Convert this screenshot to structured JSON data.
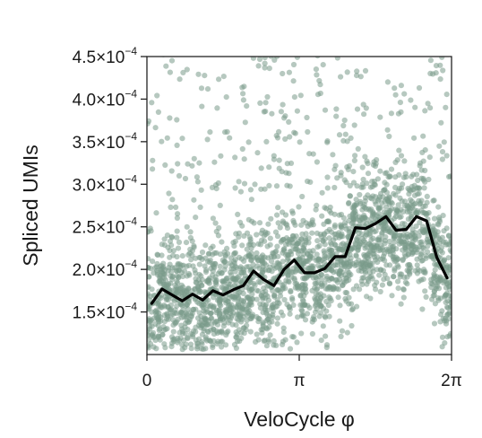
{
  "chart_data": {
    "type": "scatter",
    "xlabel": "VeloCycle φ",
    "ylabel": "Spliced UMIs",
    "xlim": [
      0,
      6.2832
    ],
    "ylim": [
      0.0001,
      0.00045
    ],
    "x_ticks": [
      {
        "value": 0,
        "label": "0"
      },
      {
        "value": 3.1416,
        "label": "π"
      },
      {
        "value": 6.2832,
        "label": "2π"
      }
    ],
    "y_ticks": [
      {
        "value": 0.00015,
        "mantissa": "1.5×10",
        "exponent": "−4"
      },
      {
        "value": 0.0002,
        "mantissa": "2.0×10",
        "exponent": "−4"
      },
      {
        "value": 0.00025,
        "mantissa": "2.5×10",
        "exponent": "−4"
      },
      {
        "value": 0.0003,
        "mantissa": "3.0×10",
        "exponent": "−4"
      },
      {
        "value": 0.00035,
        "mantissa": "3.5×10",
        "exponent": "−4"
      },
      {
        "value": 0.0004,
        "mantissa": "4.0×10",
        "exponent": "−4"
      },
      {
        "value": 0.00045,
        "mantissa": "4.5×10",
        "exponent": "−4"
      }
    ],
    "grid": false,
    "scatter_color": "#7a9a8a",
    "line_color": "#000000",
    "scatter_count": 2600,
    "mean_line": {
      "x": [
        0.1,
        0.31,
        0.52,
        0.73,
        0.94,
        1.15,
        1.36,
        1.57,
        1.78,
        1.99,
        2.2,
        2.41,
        2.62,
        2.83,
        3.04,
        3.25,
        3.46,
        3.67,
        3.88,
        4.09,
        4.3,
        4.51,
        4.72,
        4.93,
        5.14,
        5.35,
        5.56,
        5.77,
        5.98,
        6.19
      ],
      "y": [
        0.00016,
        0.000177,
        0.00017,
        0.000163,
        0.000171,
        0.000164,
        0.000175,
        0.00017,
        0.000176,
        0.000181,
        0.000198,
        0.000188,
        0.000181,
        0.0002,
        0.000211,
        0.000196,
        0.000196,
        0.000201,
        0.000215,
        0.000215,
        0.000249,
        0.000248,
        0.000254,
        0.000262,
        0.000246,
        0.000247,
        0.000262,
        0.000257,
        0.000214,
        0.00019
      ]
    }
  }
}
